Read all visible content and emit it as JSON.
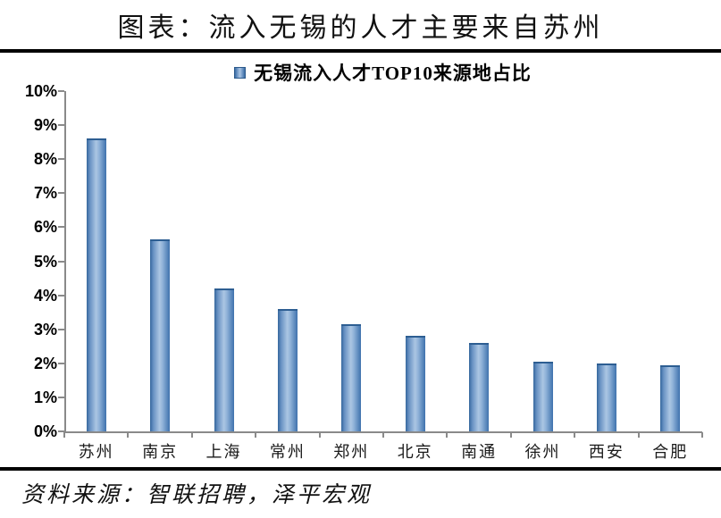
{
  "page": {
    "title": "图表：流入无锡的人才主要来自苏州",
    "source": "资料来源：智联招聘，泽平宏观"
  },
  "legend": {
    "marker_icon": "blue-gradient-square",
    "label": "无锡流入人才TOP10来源地占比"
  },
  "colors": {
    "bar_edge": "#35679d",
    "bar_center": "#abc6e3",
    "bar_top_border": "#2d5e92",
    "axis": "#8a8a8a",
    "rule": "#000000",
    "text": "#111111"
  },
  "chart_data": {
    "type": "bar",
    "title": "无锡流入人才TOP10来源地占比",
    "legend": [
      "无锡流入人才TOP10来源地占比"
    ],
    "legend_position": "top",
    "categories": [
      "苏州",
      "南京",
      "上海",
      "常州",
      "郑州",
      "北京",
      "南通",
      "徐州",
      "西安",
      "合肥"
    ],
    "values": [
      8.6,
      5.65,
      4.2,
      3.6,
      3.15,
      2.8,
      2.6,
      2.05,
      2.0,
      1.95
    ],
    "unit": "%",
    "xlabel": "",
    "ylabel": "",
    "ylim": [
      0,
      10
    ],
    "ytick_step": 1,
    "ytick_labels": [
      "0%",
      "1%",
      "2%",
      "3%",
      "4%",
      "5%",
      "6%",
      "7%",
      "8%",
      "9%",
      "10%"
    ],
    "grid": false
  }
}
